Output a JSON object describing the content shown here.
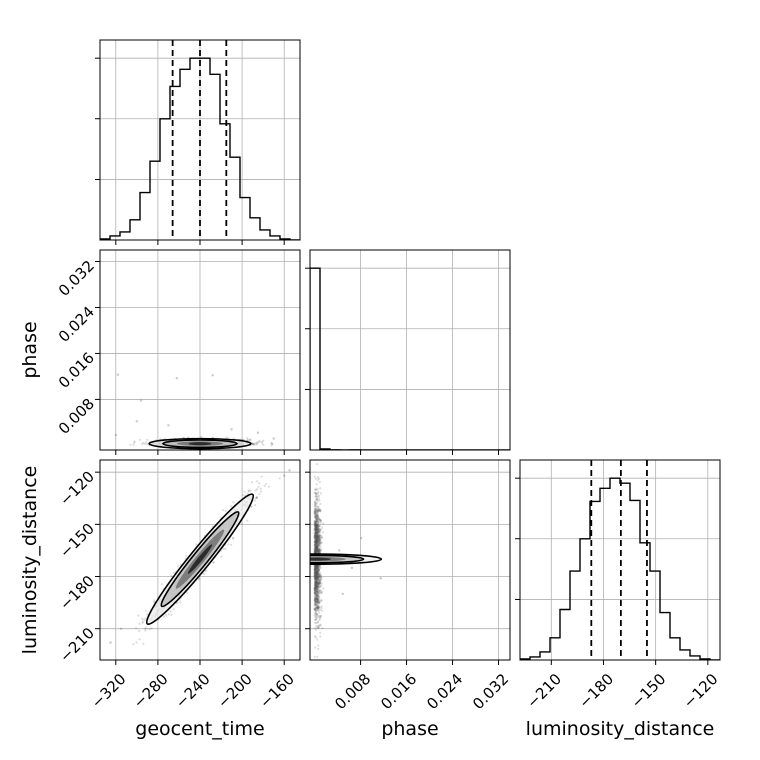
{
  "chart_data": {
    "type": "corner",
    "parameters": [
      {
        "key": "geocent_time",
        "label": "geocent_time",
        "range": [
          -335,
          -145
        ],
        "ticks": [
          -320,
          -280,
          -240,
          -200,
          -160
        ],
        "tick_labels": [
          "−320",
          "−280",
          "−240",
          "−200",
          "−160"
        ]
      },
      {
        "key": "phase",
        "label": "phase",
        "range": [
          -0.0008,
          0.034
        ],
        "ticks": [
          0.008,
          0.016,
          0.024,
          0.032
        ],
        "tick_labels": [
          "0.008",
          "0.016",
          "0.024",
          "0.032"
        ]
      },
      {
        "key": "luminosity_distance",
        "label": "luminosity_distance",
        "range": [
          -228,
          -113
        ],
        "ticks": [
          -210,
          -180,
          -150,
          -120
        ],
        "tick_labels": [
          "−210",
          "−180",
          "−150",
          "−120"
        ]
      }
    ],
    "marginals": {
      "geocent_time": {
        "bin_edges": [
          -335,
          -325.5,
          -316,
          -306.5,
          -297,
          -287.5,
          -278,
          -268.5,
          -259,
          -249.5,
          -240,
          -230.5,
          -221,
          -211.5,
          -202,
          -192.5,
          -183,
          -173.5,
          -164,
          -154.5,
          -145
        ],
        "counts": [
          1,
          4,
          8,
          20,
          47,
          78,
          120,
          152,
          169,
          180,
          180,
          164,
          115,
          82,
          42,
          22,
          10,
          4,
          1,
          0
        ],
        "quantiles": [
          -266,
          -240,
          -215
        ]
      },
      "phase": {
        "bin_edges": [
          -0.0008,
          0.00094,
          0.00268,
          0.00442,
          0.00616,
          0.0079,
          0.00964,
          0.01138,
          0.01312,
          0.01486,
          0.0166,
          0.01834,
          0.02008,
          0.02182,
          0.02356,
          0.0253,
          0.02704,
          0.02878,
          0.03052,
          0.03226,
          0.034
        ],
        "counts": [
          1000,
          6,
          1,
          0,
          1,
          0,
          0,
          0,
          0,
          0,
          0,
          0,
          0,
          0,
          0,
          0,
          0,
          0,
          0,
          0
        ],
        "quantiles": []
      },
      "luminosity_distance": {
        "bin_edges": [
          -228,
          -222.25,
          -216.5,
          -210.75,
          -205,
          -199.25,
          -193.5,
          -187.75,
          -182,
          -176.25,
          -170.5,
          -164.75,
          -159,
          -153.25,
          -147.5,
          -141.75,
          -136,
          -130.25,
          -124.5,
          -118.75,
          -113
        ],
        "counts": [
          1,
          3,
          8,
          22,
          50,
          88,
          120,
          157,
          170,
          180,
          175,
          158,
          116,
          88,
          47,
          22,
          10,
          4,
          1,
          0
        ],
        "quantiles": [
          -187,
          -170,
          -155
        ]
      }
    },
    "joint": {
      "geocent_time|phase": {
        "mean": [
          -240,
          0.0003
        ],
        "sd": [
          22,
          0.0004
        ],
        "rho": 0,
        "outliers": [
          [
            -318,
            0.0123
          ],
          [
            -262,
            0.0117
          ],
          [
            -228,
            0.0122
          ],
          [
            -296,
            0.0078
          ],
          [
            -300,
            0.0042
          ],
          [
            -270,
            0.0035
          ],
          [
            -210,
            0.0028
          ],
          [
            -185,
            0.0022
          ],
          [
            -320,
            0.0018
          ],
          [
            -170,
            0.0012
          ]
        ]
      },
      "geocent_time|luminosity_distance": {
        "mean": [
          -240,
          -170
        ],
        "sd": [
          23,
          17
        ],
        "rho": 0.97,
        "outliers": [
          [
            -325,
            -218
          ],
          [
            -315,
            -210
          ],
          [
            -160,
            -122
          ],
          [
            -155,
            -119
          ]
        ]
      },
      "phase|luminosity_distance": {
        "mean": [
          0.0003,
          -170
        ],
        "sd": [
          0.0004,
          17
        ],
        "rho": 0,
        "outliers": [
          [
            0.0043,
            -165
          ],
          [
            0.0065,
            -175
          ],
          [
            0.0115,
            -181
          ],
          [
            0.0081,
            -158
          ],
          [
            0.0049,
            -190
          ]
        ]
      }
    }
  }
}
